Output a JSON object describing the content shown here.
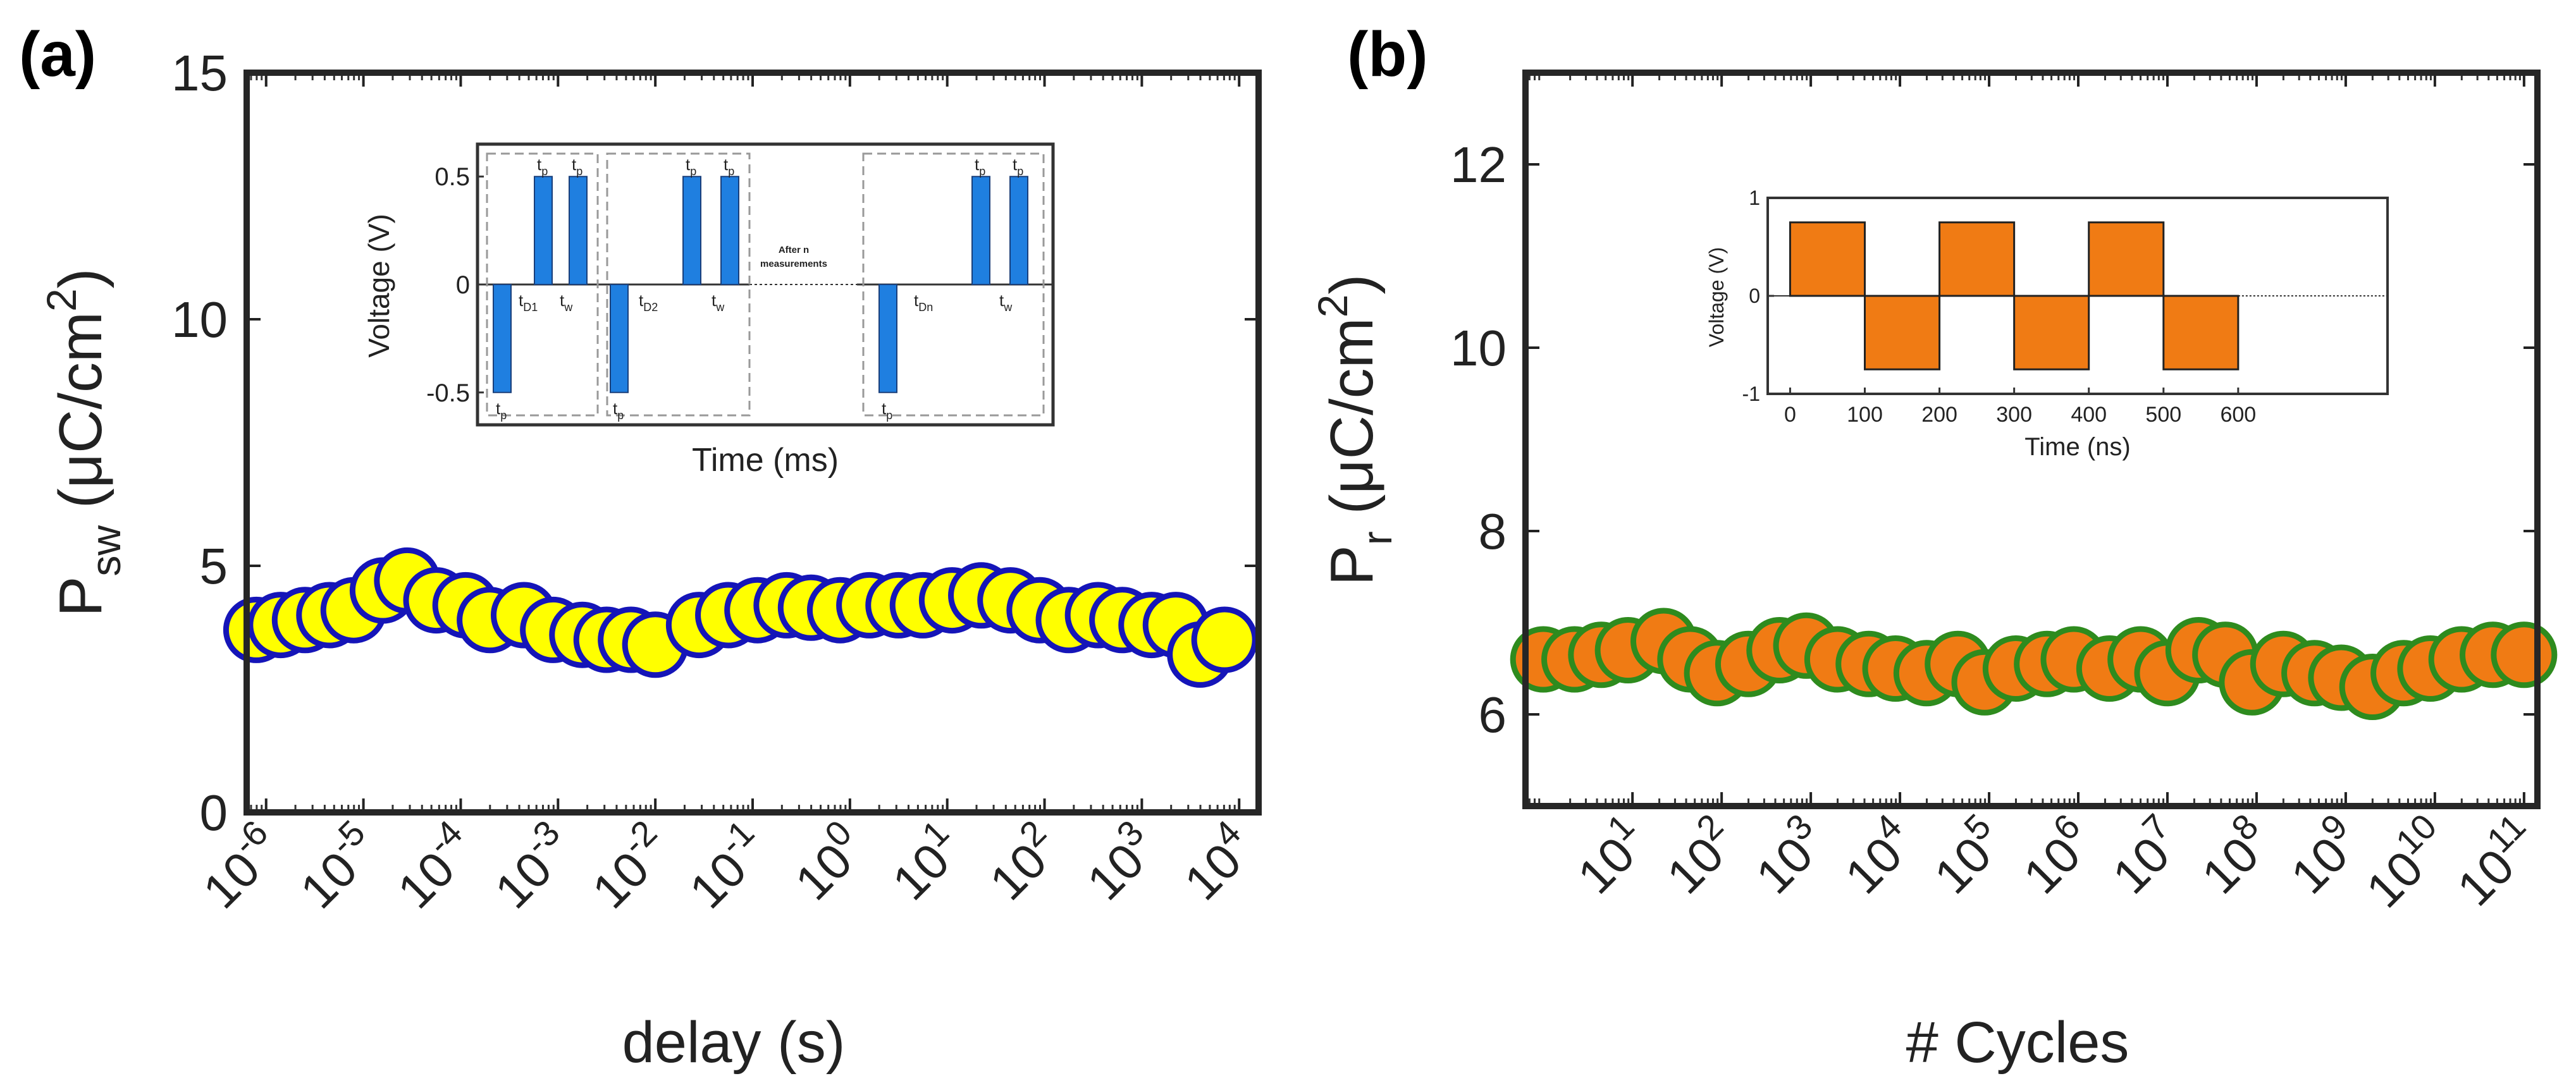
{
  "chart_data": [
    {
      "type": "scatter",
      "panel_label": "(a)",
      "xlabel": "delay (s)",
      "ylabel_main": "P",
      "ylabel_sub": "sw",
      "ylabel_unit": " (μC/cm",
      "ylabel_sup": "2",
      "ylabel_close": ")",
      "xscale": "log",
      "xlim_exp": [
        -6.2,
        4.2
      ],
      "ylim": [
        0,
        15
      ],
      "yticks": [
        0,
        5,
        10,
        15
      ],
      "xtick_labels": [
        "10-6",
        "10-5",
        "10-4",
        "10-3",
        "10-2",
        "10-1",
        "100",
        "101",
        "102",
        "103",
        "104"
      ],
      "xtick_base": "10",
      "xtick_exps": [
        "-6",
        "-5",
        "-4",
        "-3",
        "-2",
        "-1",
        "0",
        "1",
        "2",
        "3",
        "4"
      ],
      "marker_fill": "#ffff00",
      "marker_edge": "#1515b8",
      "points_x_exp": [
        -6.1,
        -5.85,
        -5.6,
        -5.35,
        -5.1,
        -4.8,
        -4.55,
        -4.25,
        -3.95,
        -3.7,
        -3.35,
        -3.05,
        -2.75,
        -2.5,
        -2.25,
        -2.0,
        -1.55,
        -1.25,
        -0.95,
        -0.65,
        -0.4,
        -0.1,
        0.2,
        0.5,
        0.75,
        1.05,
        1.35,
        1.65,
        1.95,
        2.25,
        2.55,
        2.8,
        3.1,
        3.35,
        3.6,
        3.85
      ],
      "points_y": [
        3.7,
        3.8,
        3.9,
        4.0,
        4.1,
        4.5,
        4.7,
        4.3,
        4.2,
        3.9,
        4.0,
        3.7,
        3.6,
        3.5,
        3.5,
        3.4,
        3.8,
        4.0,
        4.1,
        4.2,
        4.15,
        4.1,
        4.2,
        4.2,
        4.2,
        4.3,
        4.4,
        4.3,
        4.1,
        3.9,
        4.0,
        3.9,
        3.8,
        3.8,
        3.2,
        3.5
      ],
      "inset": {
        "xlabel": "Time (ms)",
        "ylabel": "Voltage (V)",
        "ylim": [
          -0.65,
          0.65
        ],
        "yticks": [
          {
            "v": 0.5,
            "label": "0.5"
          },
          {
            "v": 0,
            "label": "0"
          },
          {
            "v": -0.5,
            "label": "-0.5"
          }
        ],
        "bar_color": "#1f7fe0",
        "annotation_line1": "After n",
        "annotation_line2": "measurements",
        "groups": [
          {
            "neg_label": "t",
            "neg_sub": "p",
            "delay_label": "t",
            "delay_sub": "D1",
            "wait_label": "t",
            "wait_sub": "w",
            "pos1_label": "t",
            "pos1_sub": "p",
            "pos2_label": "t",
            "pos2_sub": "p"
          },
          {
            "neg_label": "t",
            "neg_sub": "p",
            "delay_label": "t",
            "delay_sub": "D2",
            "wait_label": "t",
            "wait_sub": "w",
            "pos1_label": "t",
            "pos1_sub": "p",
            "pos2_label": "t",
            "pos2_sub": "p"
          },
          {
            "neg_label": "t",
            "neg_sub": "p",
            "delay_label": "t",
            "delay_sub": "Dn",
            "wait_label": "t",
            "wait_sub": "w",
            "pos1_label": "t",
            "pos1_sub": "p",
            "pos2_label": "t",
            "pos2_sub": "p"
          }
        ],
        "pulse_amplitude": [
          -0.5,
          0.5,
          0.5
        ]
      }
    },
    {
      "type": "scatter",
      "panel_label": "(b)",
      "xlabel": "# Cycles",
      "ylabel_main": "P",
      "ylabel_sub": "r",
      "ylabel_unit": " (μC/cm",
      "ylabel_sup": "2",
      "ylabel_close": ")",
      "xscale": "log",
      "xlim_exp": [
        -0.2,
        11.15
      ],
      "ylim": [
        5,
        13
      ],
      "yticks": [
        6,
        8,
        10,
        12
      ],
      "xtick_labels": [
        "101",
        "102",
        "103",
        "104",
        "105",
        "106",
        "107",
        "108",
        "109",
        "1010",
        "1011"
      ],
      "xtick_base": "10",
      "xtick_exps": [
        "1",
        "2",
        "3",
        "4",
        "5",
        "6",
        "7",
        "8",
        "9",
        "10",
        "11"
      ],
      "marker_fill": "#f07b14",
      "marker_edge": "#2e8b1e",
      "points_x_exp": [
        0.0,
        0.35,
        0.65,
        0.95,
        1.35,
        1.65,
        1.95,
        2.3,
        2.65,
        2.95,
        3.3,
        3.65,
        3.95,
        4.3,
        4.65,
        4.95,
        5.3,
        5.65,
        5.95,
        6.35,
        6.7,
        7.0,
        7.35,
        7.65,
        7.95,
        8.3,
        8.65,
        8.95,
        9.3,
        9.65,
        9.95,
        10.3,
        10.65,
        11.0
      ],
      "points_y": [
        6.6,
        6.6,
        6.65,
        6.7,
        6.8,
        6.6,
        6.45,
        6.55,
        6.7,
        6.75,
        6.6,
        6.55,
        6.5,
        6.45,
        6.55,
        6.35,
        6.5,
        6.55,
        6.6,
        6.5,
        6.6,
        6.45,
        6.7,
        6.65,
        6.35,
        6.55,
        6.45,
        6.4,
        6.3,
        6.45,
        6.5,
        6.6,
        6.65,
        6.65
      ],
      "inset": {
        "xlabel": "Time (ns)",
        "ylabel": "Voltage (V)",
        "ylim": [
          -1,
          1
        ],
        "yticks": [
          {
            "v": 1,
            "label": "1"
          },
          {
            "v": 0,
            "label": "0"
          },
          {
            "v": -1,
            "label": "-1"
          }
        ],
        "xlim": [
          -30,
          800
        ],
        "xticks": [
          0,
          100,
          200,
          300,
          400,
          500,
          600
        ],
        "xtick_labels": [
          "0",
          "100",
          "200",
          "300",
          "400",
          "500",
          "600"
        ],
        "bar_color": "#f07b14",
        "pulses": [
          [
            0,
            100,
            0.75
          ],
          [
            100,
            200,
            -0.75
          ],
          [
            200,
            300,
            0.75
          ],
          [
            300,
            400,
            -0.75
          ],
          [
            400,
            500,
            0.75
          ],
          [
            500,
            600,
            -0.75
          ]
        ]
      }
    }
  ]
}
